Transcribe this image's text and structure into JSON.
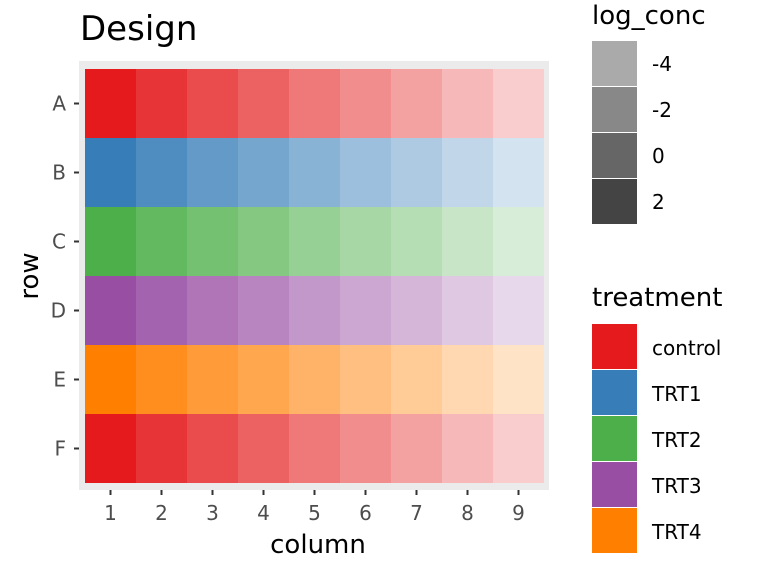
{
  "chart_data": {
    "type": "heatmap",
    "title": "Design",
    "xlabel": "column",
    "ylabel": "row",
    "columns": [
      "1",
      "2",
      "3",
      "4",
      "5",
      "6",
      "7",
      "8",
      "9"
    ],
    "rows": [
      "A",
      "B",
      "C",
      "D",
      "E",
      "F"
    ],
    "row_treatment": [
      "control",
      "TRT1",
      "TRT2",
      "TRT3",
      "TRT4",
      "control"
    ],
    "column_alpha": [
      1.0,
      0.88,
      0.78,
      0.69,
      0.59,
      0.5,
      0.41,
      0.31,
      0.22
    ],
    "legends": {
      "log_conc": {
        "title": "log_conc",
        "labels": [
          "-4",
          "-2",
          "0",
          "2"
        ],
        "shades": [
          "#aaaaaa",
          "#888888",
          "#666666",
          "#444444"
        ]
      },
      "treatment": {
        "title": "treatment",
        "labels": [
          "control",
          "TRT1",
          "TRT2",
          "TRT3",
          "TRT4"
        ]
      }
    },
    "treatment_colors": {
      "control": "#e41a1c",
      "TRT1": "#377eb8",
      "TRT2": "#4daf4a",
      "TRT3": "#984ea3",
      "TRT4": "#ff7f00"
    },
    "panel_background": "#ebebeb",
    "grid": false
  }
}
